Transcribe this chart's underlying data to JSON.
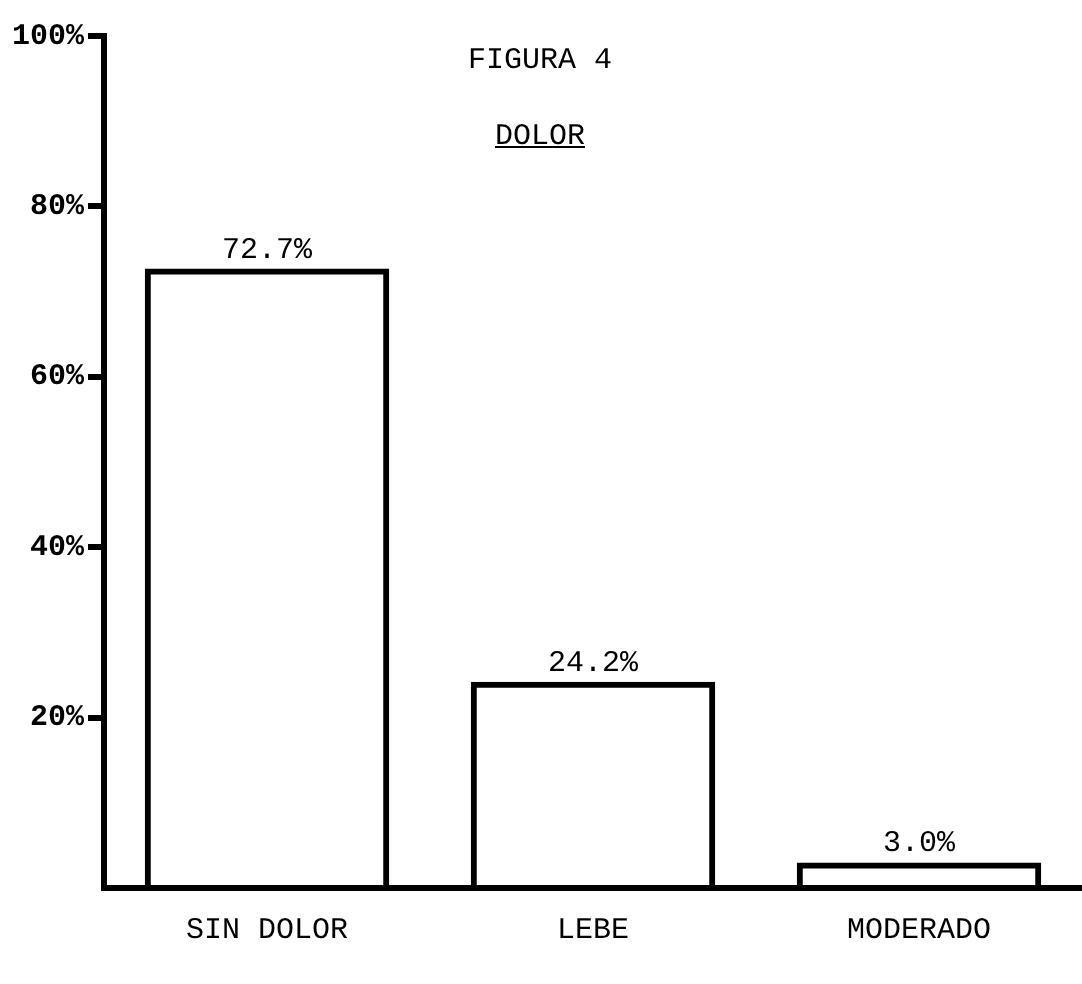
{
  "chart_data": {
    "type": "bar",
    "title": "FIGURA 4",
    "subtitle": "DOLOR",
    "categories": [
      "SIN DOLOR",
      "LEBE",
      "MODERADO"
    ],
    "values": [
      72.7,
      24.2,
      3.0
    ],
    "color": "#000000",
    "value_labels": [
      "72.7%",
      "24.2%",
      "3.0%"
    ],
    "ylim": [
      0,
      100
    ],
    "yticks": [
      {
        "value": 20,
        "label": "20%"
      },
      {
        "value": 40,
        "label": "40%"
      },
      {
        "value": 60,
        "label": "60%"
      },
      {
        "value": 80,
        "label": "80%"
      },
      {
        "value": 100,
        "label": "100%"
      }
    ],
    "grid": false,
    "legend": false
  }
}
